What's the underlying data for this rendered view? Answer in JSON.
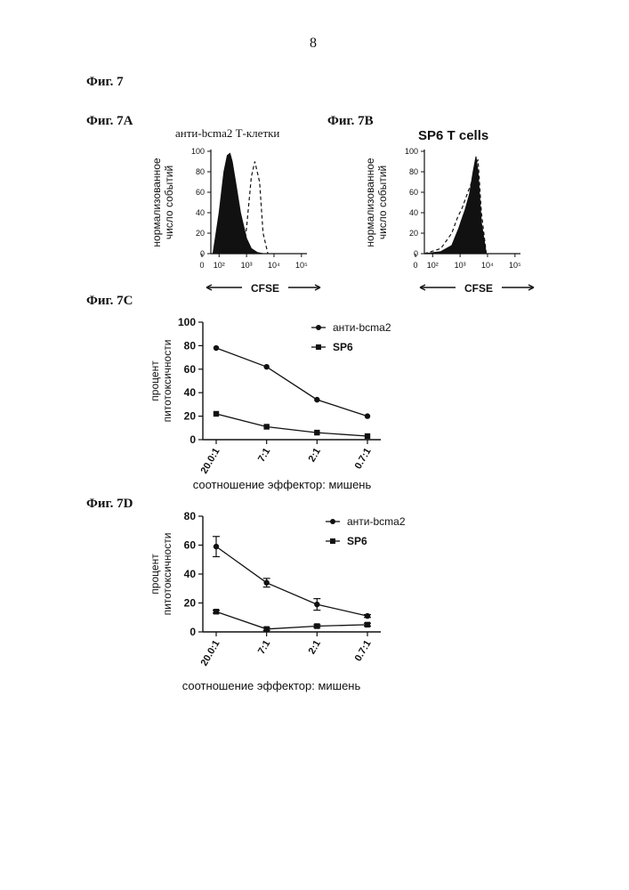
{
  "page": {
    "number": "8",
    "figure_label": "Фиг. 7"
  },
  "panels": {
    "a": {
      "label": "Фиг. 7А",
      "title": "анти-bcma2 Т-клетки"
    },
    "b": {
      "label": "Фиг. 7В",
      "title": "SP6 T cells"
    },
    "c": {
      "label": "Фиг. 7С"
    },
    "d": {
      "label": "Фиг. 7D"
    }
  },
  "colors": {
    "ink": "#111111",
    "paper": "#ffffff"
  },
  "chart_data": [
    {
      "id": "7A",
      "type": "area",
      "title": "анти-bcma2 Т-клетки",
      "xlabel": "CFSE",
      "ylabel_lines": [
        "нормализованное",
        "число событий"
      ],
      "x_scale": "log",
      "x_ticks": [
        "0",
        "10²",
        "10³",
        "10⁴",
        "10⁵"
      ],
      "y_ticks": [
        "0",
        "20",
        "40",
        "60",
        "80",
        "100"
      ],
      "ylim": [
        0,
        100
      ],
      "series": [
        {
          "style": "filled",
          "x": [
            60,
            100,
            150,
            200,
            250,
            300,
            400,
            600,
            1000,
            1500,
            2500,
            4000
          ],
          "values": [
            0,
            40,
            80,
            96,
            98,
            90,
            70,
            40,
            15,
            5,
            1,
            0
          ]
        },
        {
          "style": "dashed",
          "x": [
            500,
            800,
            1000,
            1500,
            2000,
            3000,
            4000,
            6000
          ],
          "values": [
            0,
            5,
            25,
            75,
            90,
            70,
            20,
            0
          ]
        }
      ]
    },
    {
      "id": "7B",
      "type": "area",
      "title": "SP6 T cells",
      "xlabel": "CFSE",
      "ylabel_lines": [
        "нормализованное",
        "число событий"
      ],
      "x_scale": "log",
      "x_ticks": [
        "0",
        "10²",
        "10³",
        "10⁴",
        "10⁵"
      ],
      "y_ticks": [
        "0",
        "20",
        "40",
        "60",
        "80",
        "100"
      ],
      "ylim": [
        0,
        100
      ],
      "series": [
        {
          "style": "filled",
          "x": [
            50,
            200,
            500,
            900,
            1200,
            1500,
            2200,
            3000,
            3800,
            4500,
            6000,
            9000
          ],
          "values": [
            0,
            2,
            8,
            25,
            35,
            42,
            58,
            80,
            95,
            80,
            30,
            0
          ]
        },
        {
          "style": "dashed",
          "x": [
            50,
            200,
            500,
            800,
            1200,
            1800,
            2500,
            3500,
            4500,
            6000,
            9000
          ],
          "values": [
            0,
            5,
            20,
            35,
            45,
            58,
            68,
            85,
            92,
            40,
            0
          ]
        }
      ]
    },
    {
      "id": "7C",
      "type": "line",
      "ylabel_lines": [
        "процент",
        "питотоксичности"
      ],
      "xlabel": "соотношение эффектор: мишень",
      "categories": [
        "20.0:1",
        "7:1",
        "2:1",
        "0.7:1"
      ],
      "ylim": [
        0,
        100
      ],
      "y_ticks": [
        "0",
        "20",
        "40",
        "60",
        "80",
        "100"
      ],
      "legend_position": "top-right",
      "series": [
        {
          "name": "анти-bcma2",
          "marker": "circle",
          "values": [
            78,
            62,
            34,
            20
          ]
        },
        {
          "name": "SP6",
          "marker": "square",
          "values": [
            22,
            11,
            6,
            3
          ]
        }
      ]
    },
    {
      "id": "7D",
      "type": "line",
      "ylabel_lines": [
        "процент",
        "питотоксичности"
      ],
      "xlabel": "соотношение эффектор: мишень",
      "categories": [
        "20.0:1",
        "7:1",
        "2:1",
        "0.7:1"
      ],
      "ylim": [
        0,
        80
      ],
      "y_ticks": [
        "0",
        "20",
        "40",
        "60",
        "80"
      ],
      "legend_position": "top-right",
      "series": [
        {
          "name": "анти-bcma2",
          "marker": "circle",
          "values": [
            59,
            34,
            19,
            11
          ],
          "errors": [
            7,
            3,
            4,
            1
          ]
        },
        {
          "name": "SP6",
          "marker": "square",
          "values": [
            14,
            2,
            4,
            5
          ],
          "errors": [
            1,
            1,
            1,
            1
          ]
        }
      ]
    }
  ]
}
